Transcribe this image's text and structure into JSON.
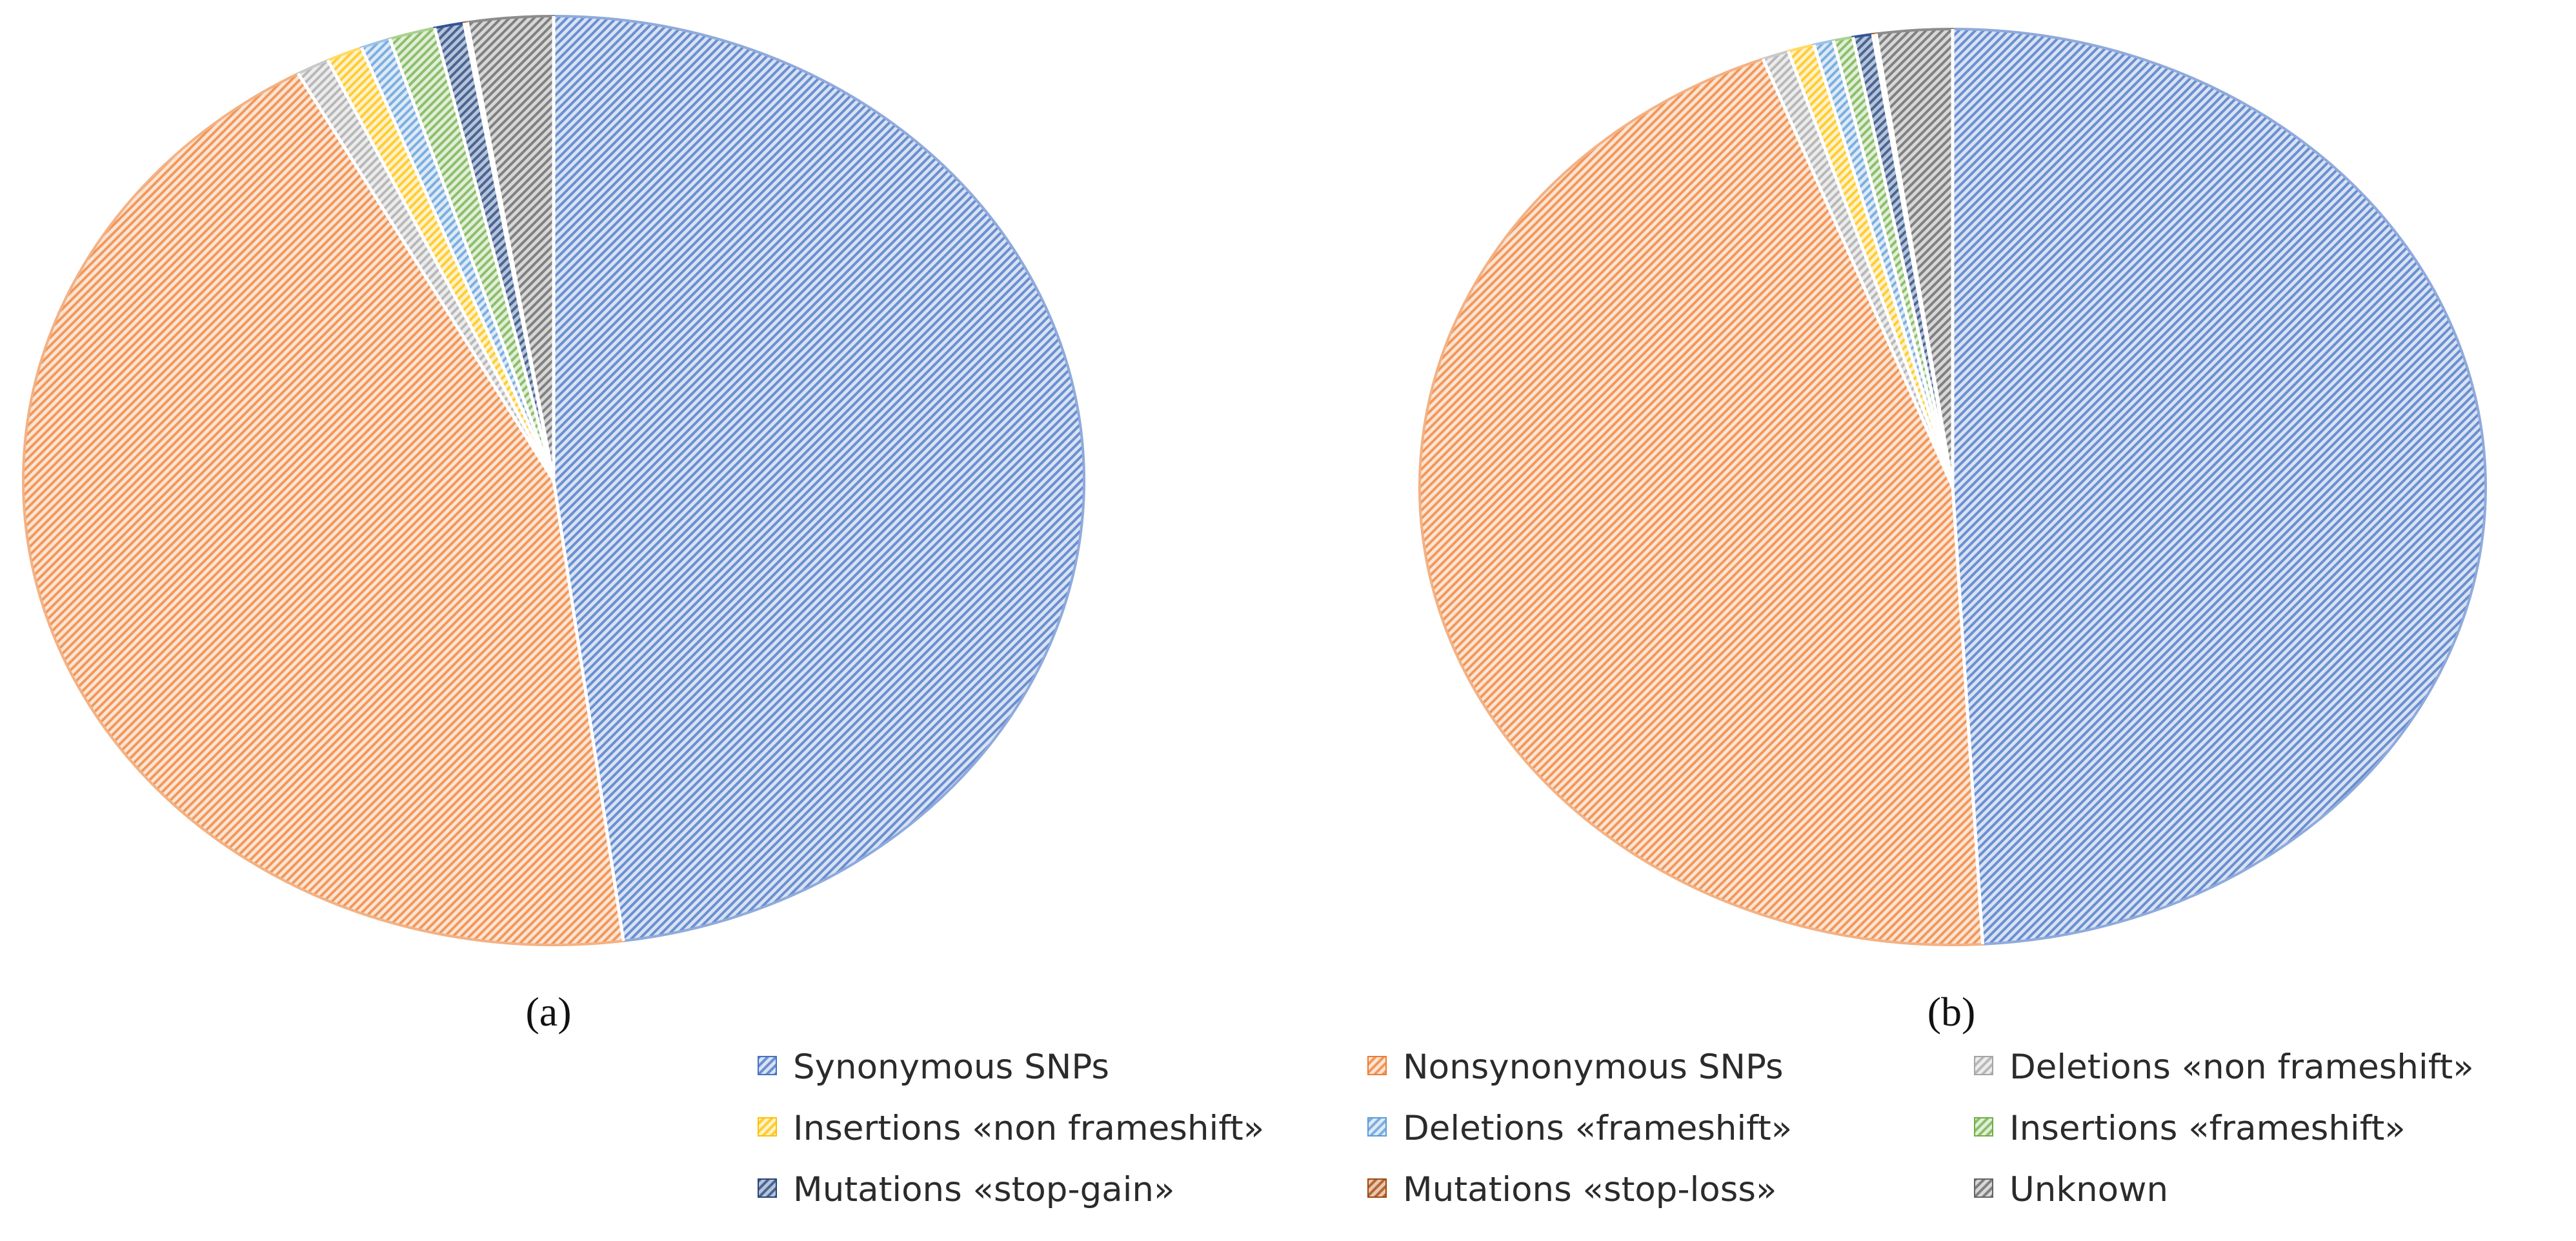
{
  "chart_data": [
    {
      "type": "pie",
      "panel_label": "(a)",
      "start_angle": "12 o'clock",
      "direction": "clockwise",
      "slices": [
        {
          "category": "Synonymous SNPs",
          "value": 47.9
        },
        {
          "category": "Nonsynonymous SNPs",
          "value": 44.1
        },
        {
          "category": "Deletions «non frameshift»",
          "value": 1.0
        },
        {
          "category": "Insertions «non frameshift»",
          "value": 1.1
        },
        {
          "category": "Deletions «frameshift»",
          "value": 0.9
        },
        {
          "category": "Insertions «frameshift»",
          "value": 1.4
        },
        {
          "category": "Mutations «stop-gain»",
          "value": 0.9
        },
        {
          "category": "Mutations «stop-loss»",
          "value": 0.1
        },
        {
          "category": "Unknown",
          "value": 2.6
        }
      ]
    },
    {
      "type": "pie",
      "panel_label": "(b)",
      "start_angle": "12 o'clock",
      "direction": "clockwise",
      "slices": [
        {
          "category": "Synonymous SNPs",
          "value": 49.2
        },
        {
          "category": "Nonsynonymous SNPs",
          "value": 45.2
        },
        {
          "category": "Deletions «non frameshift»",
          "value": 0.8
        },
        {
          "category": "Insertions «non frameshift»",
          "value": 0.8
        },
        {
          "category": "Deletions «frameshift»",
          "value": 0.6
        },
        {
          "category": "Insertions «frameshift»",
          "value": 0.6
        },
        {
          "category": "Mutations «stop-gain»",
          "value": 0.6
        },
        {
          "category": "Mutations «stop-loss»",
          "value": 0.1
        },
        {
          "category": "Unknown",
          "value": 2.3
        }
      ]
    }
  ],
  "legend": {
    "placement": "bottom-right",
    "items": [
      {
        "label": "Synonymous SNPs",
        "color": "#4472C4",
        "light": "#8FAADC"
      },
      {
        "label": "Nonsynonymous SNPs",
        "color": "#ED7D31",
        "light": "#F4B183"
      },
      {
        "label": "Deletions «non frameshift»",
        "color": "#A5A5A5",
        "light": "#C9C9C9"
      },
      {
        "label": "Insertions «non frameshift»",
        "color": "#FFC000",
        "light": "#FFD966"
      },
      {
        "label": "Deletions «frameshift»",
        "color": "#5B9BD5",
        "light": "#9DC3E6"
      },
      {
        "label": "Insertions «frameshift»",
        "color": "#70AD47",
        "light": "#A9D18E"
      },
      {
        "label": "Mutations «stop-gain»",
        "color": "#264478",
        "light": "#2F5597"
      },
      {
        "label": "Mutations «stop-loss»",
        "color": "#9E480E",
        "light": "#C55A11"
      },
      {
        "label": "Unknown",
        "color": "#636363",
        "light": "#8C8C8C"
      }
    ]
  }
}
